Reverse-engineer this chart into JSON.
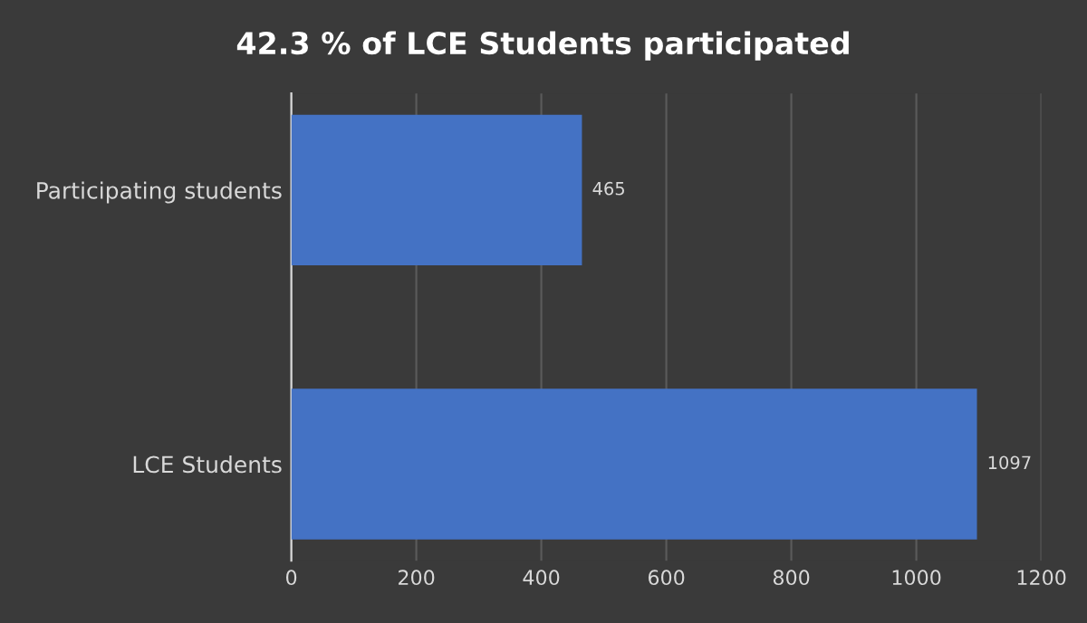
{
  "chart_data": {
    "type": "bar",
    "orientation": "horizontal",
    "title": "42.3 % of LCE Students participated",
    "categories": [
      "Participating students",
      "LCE Students"
    ],
    "values": [
      465,
      1097
    ],
    "color": "#4472c4",
    "xlim": [
      0,
      1200
    ],
    "xticks": [
      0,
      200,
      400,
      600,
      800,
      1000,
      1200
    ],
    "grid": "x",
    "data_labels": true
  }
}
